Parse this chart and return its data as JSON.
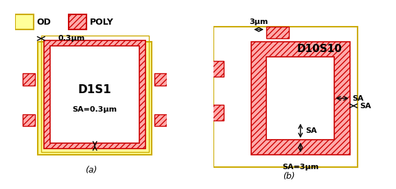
{
  "od_color": "#FFFF99",
  "od_edge_color": "#CCAA00",
  "poly_color": "#FFAAAA",
  "poly_edge_color": "#CC0000",
  "poly_hatch": "////",
  "background": "#FFFFFF",
  "legend_od_label": "OD",
  "legend_poly_label": "POLY",
  "label_a": "(a)",
  "label_b": "(b)",
  "d1s1_label": "D1S1",
  "d10s10_label": "D10S10",
  "sa_small_label": "SA=0.3μm",
  "sa_large_label": "SA=3μm",
  "sa_label": "SA",
  "dim_small_label": "0.3μm",
  "dim_large_label": "3μm"
}
